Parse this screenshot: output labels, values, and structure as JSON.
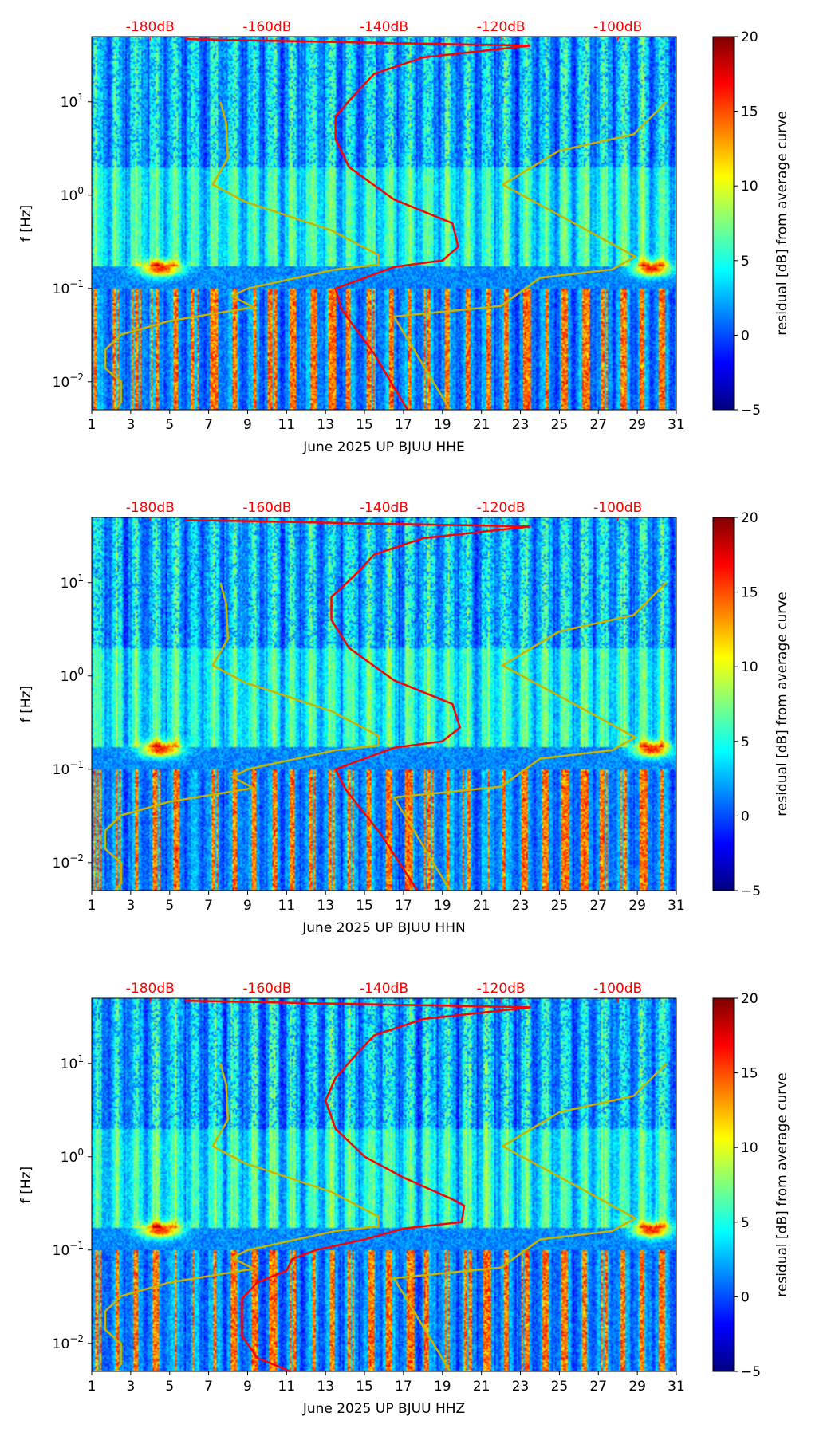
{
  "chart_data": [
    {
      "type": "heatmap",
      "title": "",
      "xlabel": "June 2025 UP BJUU  HHE",
      "ylabel": "f [Hz]",
      "colorbar_label": "residual [dB] from average curve",
      "x_ticks": [
        "1",
        "3",
        "5",
        "7",
        "9",
        "11",
        "13",
        "15",
        "17",
        "19",
        "21",
        "23",
        "25",
        "27",
        "29",
        "31"
      ],
      "xlim": [
        1,
        31
      ],
      "y_ticks": [
        "10^-2",
        "10^-1",
        "10^0",
        "10^1"
      ],
      "ylim": [
        0.005,
        50
      ],
      "top_ticks": [
        "-180dB",
        "-160dB",
        "-140dB",
        "-120dB",
        "-100dB"
      ],
      "top_db_range": [
        -190,
        -90
      ],
      "colorbar_ticks": [
        "20",
        "15",
        "10",
        "5",
        "0",
        "−5"
      ],
      "clim": [
        -5,
        20
      ],
      "median_psd": {
        "freq": [
          0.005,
          0.02,
          0.06,
          0.1,
          0.13,
          0.17,
          0.2,
          0.28,
          0.5,
          0.9,
          2,
          4,
          7,
          12,
          20,
          30,
          40,
          47
        ],
        "db": [
          -136,
          -141.7,
          -147.3,
          -148.3,
          -143.3,
          -138.3,
          -130,
          -127.3,
          -128.3,
          -138.3,
          -146,
          -148.3,
          -148.3,
          -145,
          -141.7,
          -133.3,
          -115,
          -174
        ]
      }
    },
    {
      "type": "heatmap",
      "title": "",
      "xlabel": "June 2025 UP BJUU  HHN",
      "ylabel": "f [Hz]",
      "colorbar_label": "residual [dB] from average curve",
      "x_ticks": [
        "1",
        "3",
        "5",
        "7",
        "9",
        "11",
        "13",
        "15",
        "17",
        "19",
        "21",
        "23",
        "25",
        "27",
        "29",
        "31"
      ],
      "xlim": [
        1,
        31
      ],
      "y_ticks": [
        "10^-2",
        "10^-1",
        "10^0",
        "10^1"
      ],
      "ylim": [
        0.005,
        50
      ],
      "top_ticks": [
        "-180dB",
        "-160dB",
        "-140dB",
        "-120dB",
        "-100dB"
      ],
      "top_db_range": [
        -190,
        -90
      ],
      "colorbar_ticks": [
        "20",
        "15",
        "10",
        "5",
        "0",
        "−5"
      ],
      "clim": [
        -5,
        20
      ],
      "median_psd": {
        "freq": [
          0.005,
          0.02,
          0.06,
          0.1,
          0.13,
          0.17,
          0.2,
          0.28,
          0.5,
          0.9,
          2,
          4,
          7,
          12,
          20,
          30,
          40,
          47
        ],
        "db": [
          -134.3,
          -140.5,
          -146.5,
          -148.3,
          -143.3,
          -138.3,
          -130,
          -127,
          -128.3,
          -138.3,
          -146,
          -149,
          -149,
          -145,
          -141.7,
          -133.3,
          -115,
          -174
        ]
      }
    },
    {
      "type": "heatmap",
      "title": "",
      "xlabel": "June 2025 UP BJUU  HHZ",
      "ylabel": "f [Hz]",
      "colorbar_label": "residual [dB] from average curve",
      "x_ticks": [
        "1",
        "3",
        "5",
        "7",
        "9",
        "11",
        "13",
        "15",
        "17",
        "19",
        "21",
        "23",
        "25",
        "27",
        "29",
        "31"
      ],
      "xlim": [
        1,
        31
      ],
      "y_ticks": [
        "10^-2",
        "10^-1",
        "10^0",
        "10^1"
      ],
      "ylim": [
        0.005,
        50
      ],
      "top_ticks": [
        "-180dB",
        "-160dB",
        "-140dB",
        "-120dB",
        "-100dB"
      ],
      "top_db_range": [
        -190,
        -90
      ],
      "colorbar_ticks": [
        "20",
        "15",
        "10",
        "5",
        "0",
        "−5"
      ],
      "clim": [
        -5,
        20
      ],
      "median_psd": {
        "freq": [
          0.005,
          0.007,
          0.012,
          0.03,
          0.045,
          0.06,
          0.08,
          0.1,
          0.13,
          0.17,
          0.2,
          0.3,
          0.35,
          0.6,
          1,
          2,
          4,
          7,
          12,
          20,
          30,
          40,
          47
        ],
        "db": [
          -156,
          -161.7,
          -164.3,
          -164.3,
          -161.7,
          -156.7,
          -155.7,
          -151.7,
          -143.3,
          -136.7,
          -126.7,
          -126.3,
          -128.3,
          -136.7,
          -143.3,
          -148.3,
          -150,
          -148.3,
          -145,
          -141.7,
          -133.3,
          -115,
          -174
        ]
      }
    }
  ],
  "noise_models": {
    "low": {
      "freq": [
        0.005,
        0.006,
        0.01,
        0.014,
        0.022,
        0.032,
        0.045,
        0.063,
        0.083,
        0.1,
        0.16,
        0.18,
        0.23,
        0.42,
        0.85,
        1.3,
        2.5,
        6,
        10
      ],
      "db": [
        -186,
        -185,
        -185,
        -187.7,
        -187.7,
        -185,
        -176.7,
        -162.3,
        -166,
        -163.3,
        -148.3,
        -141,
        -141,
        -149,
        -163.7,
        -169.3,
        -166.7,
        -167,
        -168
      ]
    },
    "high": {
      "freq": [
        10,
        4.5,
        3,
        1.3,
        0.22,
        0.16,
        0.13,
        0.065,
        0.05,
        0.005
      ],
      "db": [
        -91.7,
        -97.3,
        -110,
        -119.7,
        -97,
        -101,
        -113.3,
        -120,
        -138.3,
        -128.7
      ]
    }
  },
  "colors": {
    "median": "#ff0000",
    "noise_model": "#c8b400"
  }
}
